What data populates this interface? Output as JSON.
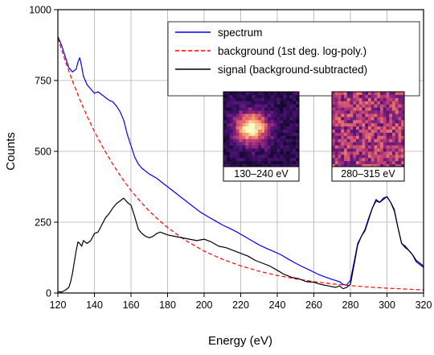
{
  "chart_data": {
    "type": "line",
    "title": "",
    "xlabel": "Energy (eV)",
    "ylabel": "Counts",
    "xlim": [
      120,
      320
    ],
    "ylim": [
      0,
      1000
    ],
    "xticks": [
      120,
      140,
      160,
      180,
      200,
      220,
      240,
      260,
      280,
      300,
      320
    ],
    "yticks": [
      0,
      250,
      500,
      750,
      1000
    ],
    "grid": true,
    "legend_position": "top-right",
    "series": [
      {
        "name": "spectrum",
        "color": "#0000ff",
        "style": "solid",
        "x": [
          120,
          122,
          124,
          126,
          128,
          130,
          131,
          132,
          133,
          134,
          136,
          138,
          140,
          142,
          144,
          146,
          148,
          150,
          152,
          154,
          156,
          158,
          160,
          162,
          164,
          166,
          168,
          170,
          174,
          178,
          182,
          186,
          190,
          194,
          198,
          202,
          206,
          210,
          214,
          218,
          222,
          226,
          230,
          234,
          238,
          242,
          246,
          250,
          254,
          258,
          262,
          266,
          270,
          274,
          276,
          278,
          280,
          282,
          284,
          286,
          288,
          290,
          292,
          294,
          296,
          298,
          300,
          302,
          304,
          306,
          308,
          310,
          312,
          314,
          316,
          318,
          320
        ],
        "y": [
          905,
          875,
          835,
          795,
          780,
          790,
          815,
          830,
          800,
          765,
          735,
          720,
          705,
          710,
          700,
          690,
          680,
          675,
          660,
          640,
          610,
          560,
          520,
          480,
          455,
          440,
          430,
          420,
          405,
          385,
          365,
          345,
          325,
          305,
          285,
          270,
          255,
          240,
          228,
          215,
          200,
          185,
          170,
          158,
          147,
          135,
          120,
          105,
          92,
          80,
          67,
          57,
          48,
          40,
          30,
          28,
          45,
          110,
          175,
          200,
          225,
          265,
          300,
          330,
          320,
          335,
          340,
          320,
          295,
          230,
          175,
          165,
          150,
          135,
          110,
          100,
          90
        ]
      },
      {
        "name": "background (1st deg. log-poly.)",
        "color": "#ff0000",
        "style": "dashed",
        "x": [
          120,
          124,
          128,
          132,
          136,
          140,
          145,
          150,
          155,
          160,
          165,
          170,
          175,
          180,
          190,
          200,
          210,
          220,
          230,
          240,
          250,
          260,
          270,
          280,
          290,
          300,
          310,
          320
        ],
        "y": [
          900,
          820,
          748,
          683,
          624,
          570,
          509,
          455,
          406,
          362,
          324,
          289,
          259,
          231,
          185,
          148,
          119,
          96,
          77,
          62,
          50,
          40,
          32,
          26,
          21,
          17,
          14,
          11
        ]
      },
      {
        "name": "signal (background-subtracted)",
        "color": "#000000",
        "style": "solid",
        "x": [
          120,
          122,
          124,
          126,
          127,
          128,
          129,
          130,
          131,
          132,
          133,
          134,
          136,
          138,
          140,
          142,
          144,
          146,
          148,
          150,
          152,
          154,
          156,
          158,
          160,
          162,
          164,
          166,
          168,
          170,
          172,
          174,
          176,
          178,
          180,
          184,
          188,
          192,
          196,
          200,
          204,
          208,
          212,
          216,
          220,
          224,
          228,
          232,
          236,
          240,
          244,
          248,
          252,
          256,
          260,
          264,
          268,
          272,
          274,
          276,
          278,
          280,
          282,
          284,
          286,
          288,
          290,
          292,
          294,
          296,
          298,
          300,
          302,
          304,
          306,
          308,
          310,
          312,
          314,
          316,
          318,
          320
        ],
        "y": [
          5,
          3,
          10,
          20,
          40,
          70,
          110,
          150,
          180,
          175,
          165,
          185,
          175,
          185,
          210,
          215,
          240,
          265,
          280,
          300,
          315,
          325,
          335,
          320,
          310,
          270,
          225,
          210,
          200,
          195,
          200,
          210,
          215,
          210,
          205,
          200,
          195,
          190,
          185,
          190,
          180,
          165,
          160,
          150,
          140,
          130,
          115,
          105,
          95,
          80,
          65,
          55,
          50,
          40,
          38,
          30,
          25,
          20,
          25,
          15,
          20,
          30,
          100,
          170,
          200,
          220,
          260,
          300,
          325,
          320,
          330,
          340,
          320,
          290,
          230,
          175,
          160,
          150,
          135,
          115,
          105,
          95
        ]
      }
    ],
    "insets": [
      {
        "label": "130–240 eV"
      },
      {
        "label": "280–315 eV"
      }
    ]
  },
  "icons": {
    "inset_bright": "heatmap-bright-spot",
    "inset_noise": "heatmap-noise"
  }
}
